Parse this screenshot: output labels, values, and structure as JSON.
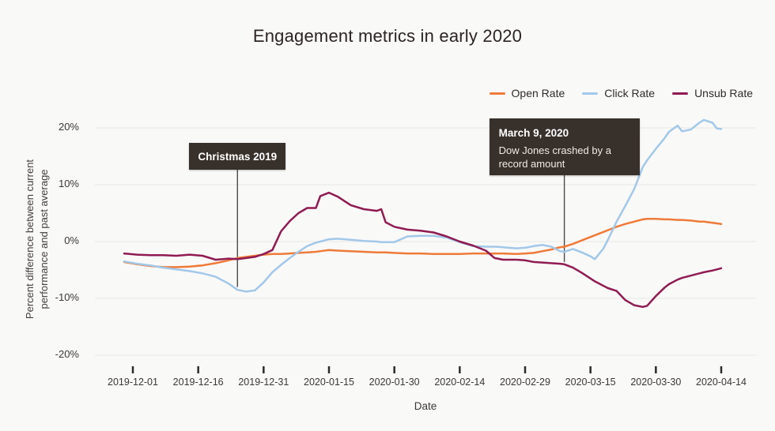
{
  "title": "Engagement metrics in early 2020",
  "axes": {
    "y_title": "Percent difference between current\nperformance and past average",
    "x_title": "Date",
    "y_ticks": [
      {
        "label": "20%",
        "value": 20
      },
      {
        "label": "10%",
        "value": 10
      },
      {
        "label": "0%",
        "value": 0
      },
      {
        "label": "-10%",
        "value": -10
      },
      {
        "label": "-20%",
        "value": -20
      }
    ],
    "x_ticks": [
      "2019-12-01",
      "2019-12-16",
      "2019-12-31",
      "2020-01-15",
      "2020-01-30",
      "2020-02-14",
      "2020-02-29",
      "2020-03-15",
      "2020-03-30",
      "2020-04-14"
    ]
  },
  "annotations": [
    {
      "title": "Christmas 2019",
      "body": "",
      "date": "2019-12-25",
      "pointer_value": -8.0
    },
    {
      "title": "March 9, 2020",
      "body": "Dow Jones crashed by a record amount",
      "date": "2020-03-09",
      "pointer_value": -3.6
    }
  ],
  "colors": {
    "open_rate": "#ef7a38",
    "click_rate": "#a2c8e9",
    "unsub_rate": "#8f1b52",
    "grid": "#e8e7e4",
    "tick_mark": "#2e2b28",
    "annotation_line": "#4a4a4a",
    "annotation_bg": "#38302a"
  },
  "chart_data": {
    "type": "line",
    "title": "Engagement metrics in early 2020",
    "xlabel": "Date",
    "ylabel": "Percent difference between current performance and past average",
    "ylim": [
      -20,
      20
    ],
    "x_range": [
      "2019-11-29",
      "2020-04-14"
    ],
    "grid": "horizontal",
    "legend_position": "top-right",
    "x": [
      "2019-11-29",
      "2019-12-02",
      "2019-12-05",
      "2019-12-08",
      "2019-12-11",
      "2019-12-14",
      "2019-12-17",
      "2019-12-20",
      "2019-12-23",
      "2019-12-25",
      "2019-12-27",
      "2019-12-29",
      "2019-12-31",
      "2020-01-02",
      "2020-01-04",
      "2020-01-06",
      "2020-01-08",
      "2020-01-10",
      "2020-01-12",
      "2020-01-13",
      "2020-01-15",
      "2020-01-17",
      "2020-01-20",
      "2020-01-23",
      "2020-01-26",
      "2020-01-27",
      "2020-01-28",
      "2020-01-30",
      "2020-02-02",
      "2020-02-05",
      "2020-02-08",
      "2020-02-11",
      "2020-02-14",
      "2020-02-17",
      "2020-02-20",
      "2020-02-22",
      "2020-02-24",
      "2020-02-27",
      "2020-02-29",
      "2020-03-02",
      "2020-03-04",
      "2020-03-06",
      "2020-03-08",
      "2020-03-09",
      "2020-03-11",
      "2020-03-13",
      "2020-03-15",
      "2020-03-16",
      "2020-03-18",
      "2020-03-19",
      "2020-03-21",
      "2020-03-23",
      "2020-03-25",
      "2020-03-27",
      "2020-03-28",
      "2020-03-30",
      "2020-04-01",
      "2020-04-02",
      "2020-04-04",
      "2020-04-05",
      "2020-04-07",
      "2020-04-09",
      "2020-04-10",
      "2020-04-12",
      "2020-04-13",
      "2020-04-14"
    ],
    "series": [
      {
        "name": "Open Rate",
        "color": "#ef7a38",
        "values": [
          -3.6,
          -4.0,
          -4.3,
          -4.5,
          -4.5,
          -4.4,
          -4.2,
          -3.8,
          -3.3,
          -2.9,
          -2.7,
          -2.5,
          -2.3,
          -2.2,
          -2.2,
          -2.1,
          -2.0,
          -1.9,
          -1.8,
          -1.7,
          -1.5,
          -1.6,
          -1.7,
          -1.8,
          -1.9,
          -1.9,
          -1.9,
          -2.0,
          -2.1,
          -2.1,
          -2.2,
          -2.2,
          -2.2,
          -2.1,
          -2.1,
          -2.1,
          -2.1,
          -2.2,
          -2.1,
          -2.0,
          -1.7,
          -1.4,
          -1.0,
          -0.9,
          -0.4,
          0.2,
          0.8,
          1.1,
          1.7,
          2.0,
          2.6,
          3.1,
          3.5,
          3.9,
          4.0,
          4.0,
          3.9,
          3.9,
          3.8,
          3.8,
          3.7,
          3.5,
          3.5,
          3.3,
          3.2,
          3.1
        ]
      },
      {
        "name": "Click Rate",
        "color": "#a2c8e9",
        "values": [
          -3.5,
          -3.9,
          -4.2,
          -4.6,
          -4.9,
          -5.2,
          -5.6,
          -6.2,
          -7.4,
          -8.5,
          -8.8,
          -8.6,
          -7.2,
          -5.4,
          -4.1,
          -2.9,
          -1.8,
          -0.8,
          -0.2,
          0.0,
          0.4,
          0.5,
          0.3,
          0.1,
          0.0,
          -0.1,
          -0.1,
          -0.1,
          0.9,
          1.0,
          1.0,
          0.7,
          -0.1,
          -0.8,
          -0.9,
          -0.9,
          -1.0,
          -1.2,
          -1.1,
          -0.8,
          -0.6,
          -0.9,
          -1.7,
          -1.8,
          -1.3,
          -1.9,
          -2.6,
          -3.1,
          -1.2,
          0.3,
          3.5,
          6.3,
          9.2,
          13.1,
          14.3,
          16.3,
          18.2,
          19.3,
          20.4,
          19.4,
          19.7,
          20.9,
          21.4,
          20.9,
          19.9,
          19.8
        ]
      },
      {
        "name": "Unsub Rate",
        "color": "#8f1b52",
        "values": [
          -2.1,
          -2.3,
          -2.4,
          -2.4,
          -2.5,
          -2.3,
          -2.5,
          -3.2,
          -3.0,
          -3.1,
          -2.9,
          -2.7,
          -2.2,
          -1.5,
          1.8,
          3.6,
          5.0,
          5.9,
          5.9,
          8.0,
          8.6,
          7.9,
          6.4,
          5.7,
          5.4,
          5.7,
          3.4,
          2.6,
          2.1,
          1.9,
          1.6,
          0.9,
          0.0,
          -0.7,
          -1.6,
          -2.9,
          -3.2,
          -3.2,
          -3.3,
          -3.6,
          -3.7,
          -3.8,
          -3.9,
          -4.0,
          -4.6,
          -5.5,
          -6.5,
          -7.0,
          -7.8,
          -8.2,
          -8.7,
          -10.3,
          -11.2,
          -11.5,
          -11.3,
          -9.6,
          -8.1,
          -7.5,
          -6.7,
          -6.4,
          -6.0,
          -5.6,
          -5.4,
          -5.1,
          -4.9,
          -4.7
        ]
      }
    ]
  }
}
